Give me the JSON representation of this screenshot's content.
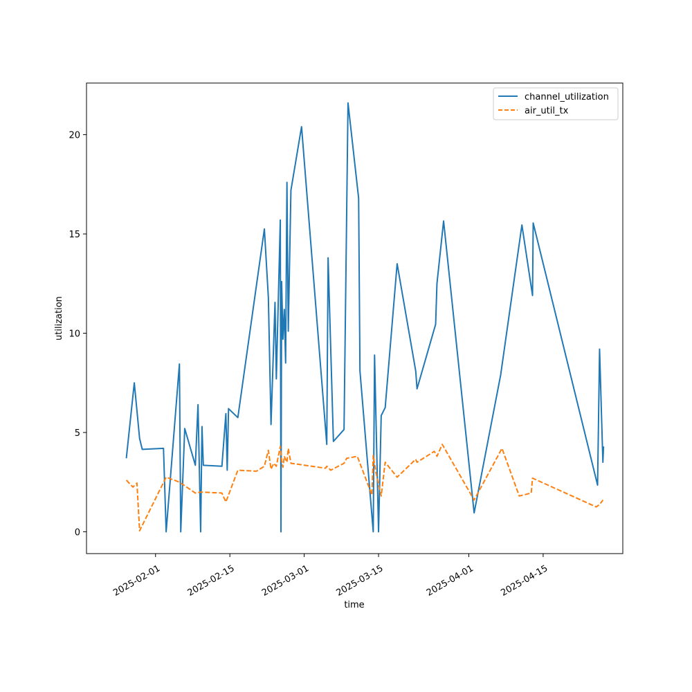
{
  "chart_data": {
    "type": "line",
    "title": "",
    "xlabel": "time",
    "ylabel": "utilization",
    "xlim": [
      "2025-01-19",
      "2025-04-30"
    ],
    "ylim": [
      -1.1,
      22.6
    ],
    "x_ticks": [
      "2025-02-01",
      "2025-02-15",
      "2025-03-01",
      "2025-03-15",
      "2025-04-01",
      "2025-04-15"
    ],
    "y_ticks": [
      0,
      5,
      10,
      15,
      20
    ],
    "grid": false,
    "legend_position": "top-right",
    "series": [
      {
        "name": "channel_utilization",
        "color": "#1f77b4",
        "dash": "solid",
        "points": [
          [
            "2025-01-26 12:00",
            3.7
          ],
          [
            "2025-01-28 00:00",
            7.5
          ],
          [
            "2025-01-29 00:00",
            4.7
          ],
          [
            "2025-01-29 12:00",
            4.15
          ],
          [
            "2025-02-02 12:00",
            4.2
          ],
          [
            "2025-02-03 00:00",
            0.0
          ],
          [
            "2025-02-05 12:00",
            8.45
          ],
          [
            "2025-02-05 18:00",
            0.0
          ],
          [
            "2025-02-06 12:00",
            5.2
          ],
          [
            "2025-02-08 12:00",
            3.35
          ],
          [
            "2025-02-09 00:00",
            6.4
          ],
          [
            "2025-02-09 12:00",
            0.0
          ],
          [
            "2025-02-09 18:00",
            5.3
          ],
          [
            "2025-02-10 00:00",
            3.35
          ],
          [
            "2025-02-13 12:00",
            3.3
          ],
          [
            "2025-02-14 06:00",
            5.95
          ],
          [
            "2025-02-14 12:00",
            3.1
          ],
          [
            "2025-02-14 18:00",
            6.2
          ],
          [
            "2025-02-16 12:00",
            5.75
          ],
          [
            "2025-02-21 12:00",
            15.25
          ],
          [
            "2025-02-22 06:00",
            11.8
          ],
          [
            "2025-02-22 18:00",
            5.4
          ],
          [
            "2025-02-23 12:00",
            11.55
          ],
          [
            "2025-02-23 18:00",
            7.7
          ],
          [
            "2025-02-24 12:00",
            15.7
          ],
          [
            "2025-02-24 15:00",
            0.0
          ],
          [
            "2025-02-24 18:00",
            12.6
          ],
          [
            "2025-02-25 00:00",
            9.7
          ],
          [
            "2025-02-25 06:00",
            11.2
          ],
          [
            "2025-02-25 12:00",
            8.5
          ],
          [
            "2025-02-25 18:00",
            17.6
          ],
          [
            "2025-02-26 00:00",
            10.1
          ],
          [
            "2025-02-26 12:00",
            17.2
          ],
          [
            "2025-02-28 12:00",
            20.4
          ],
          [
            "2025-03-05 06:00",
            4.4
          ],
          [
            "2025-03-05 12:00",
            13.8
          ],
          [
            "2025-03-06 12:00",
            4.55
          ],
          [
            "2025-03-08 12:00",
            5.15
          ],
          [
            "2025-03-09 06:00",
            21.6
          ],
          [
            "2025-03-11 06:00",
            16.8
          ],
          [
            "2025-03-11 12:00",
            8.1
          ],
          [
            "2025-03-14 00:00",
            0.0
          ],
          [
            "2025-03-14 06:00",
            8.9
          ],
          [
            "2025-03-15 00:00",
            0.0
          ],
          [
            "2025-03-15 12:00",
            5.85
          ],
          [
            "2025-03-16 06:00",
            6.25
          ],
          [
            "2025-03-18 12:00",
            13.5
          ],
          [
            "2025-03-22 00:00",
            8.1
          ],
          [
            "2025-03-22 06:00",
            7.2
          ],
          [
            "2025-03-25 18:00",
            10.45
          ],
          [
            "2025-03-26 00:00",
            12.5
          ],
          [
            "2025-03-27 06:00",
            15.65
          ],
          [
            "2025-04-02 00:00",
            0.95
          ],
          [
            "2025-04-07 00:00",
            7.9
          ],
          [
            "2025-04-11 00:00",
            15.45
          ],
          [
            "2025-04-13 00:00",
            11.9
          ],
          [
            "2025-04-13 03:00",
            15.55
          ],
          [
            "2025-04-25 06:00",
            2.35
          ],
          [
            "2025-04-25 15:00",
            9.2
          ],
          [
            "2025-04-26 06:00",
            3.5
          ],
          [
            "2025-04-26 09:00",
            4.3
          ]
        ]
      },
      {
        "name": "air_util_tx",
        "color": "#ff7f0e",
        "dash": "dashed",
        "points": [
          [
            "2025-01-26 12:00",
            2.6
          ],
          [
            "2025-01-27 18:00",
            2.25
          ],
          [
            "2025-01-28 12:00",
            2.45
          ],
          [
            "2025-01-29 00:00",
            0.05
          ],
          [
            "2025-02-03 00:00",
            2.75
          ],
          [
            "2025-02-05 12:00",
            2.5
          ],
          [
            "2025-02-08 12:00",
            1.95
          ],
          [
            "2025-02-09 12:00",
            2.0
          ],
          [
            "2025-02-13 12:00",
            1.95
          ],
          [
            "2025-02-14 06:00",
            1.5
          ],
          [
            "2025-02-16 12:00",
            3.1
          ],
          [
            "2025-02-20 00:00",
            3.05
          ],
          [
            "2025-02-21 12:00",
            3.3
          ],
          [
            "2025-02-22 06:00",
            4.1
          ],
          [
            "2025-02-22 18:00",
            3.15
          ],
          [
            "2025-02-23 06:00",
            3.45
          ],
          [
            "2025-02-23 18:00",
            3.3
          ],
          [
            "2025-02-24 12:00",
            4.3
          ],
          [
            "2025-02-24 18:00",
            3.6
          ],
          [
            "2025-02-25 00:00",
            3.25
          ],
          [
            "2025-02-25 06:00",
            3.8
          ],
          [
            "2025-02-25 18:00",
            3.5
          ],
          [
            "2025-02-26 00:00",
            4.2
          ],
          [
            "2025-02-26 12:00",
            3.45
          ],
          [
            "2025-03-05 00:00",
            3.2
          ],
          [
            "2025-03-05 06:00",
            3.3
          ],
          [
            "2025-03-06 00:00",
            3.1
          ],
          [
            "2025-03-08 12:00",
            3.45
          ],
          [
            "2025-03-09 00:00",
            3.7
          ],
          [
            "2025-03-11 00:00",
            3.8
          ],
          [
            "2025-03-13 18:00",
            1.85
          ],
          [
            "2025-03-14 00:00",
            3.85
          ],
          [
            "2025-03-14 12:00",
            3.0
          ],
          [
            "2025-03-15 12:00",
            1.8
          ],
          [
            "2025-03-16 06:00",
            3.5
          ],
          [
            "2025-03-18 12:00",
            2.75
          ],
          [
            "2025-03-22 00:00",
            3.65
          ],
          [
            "2025-03-22 06:00",
            3.5
          ],
          [
            "2025-03-25 12:00",
            4.05
          ],
          [
            "2025-03-26 00:00",
            3.8
          ],
          [
            "2025-03-27 00:00",
            4.4
          ],
          [
            "2025-04-02 00:00",
            1.6
          ],
          [
            "2025-04-07 06:00",
            4.2
          ],
          [
            "2025-04-10 12:00",
            1.8
          ],
          [
            "2025-04-12 18:00",
            1.95
          ],
          [
            "2025-04-13 00:00",
            2.7
          ],
          [
            "2025-04-25 00:00",
            1.25
          ],
          [
            "2025-04-25 12:00",
            1.35
          ],
          [
            "2025-04-26 00:00",
            1.5
          ],
          [
            "2025-04-26 06:00",
            1.6
          ]
        ]
      }
    ]
  }
}
